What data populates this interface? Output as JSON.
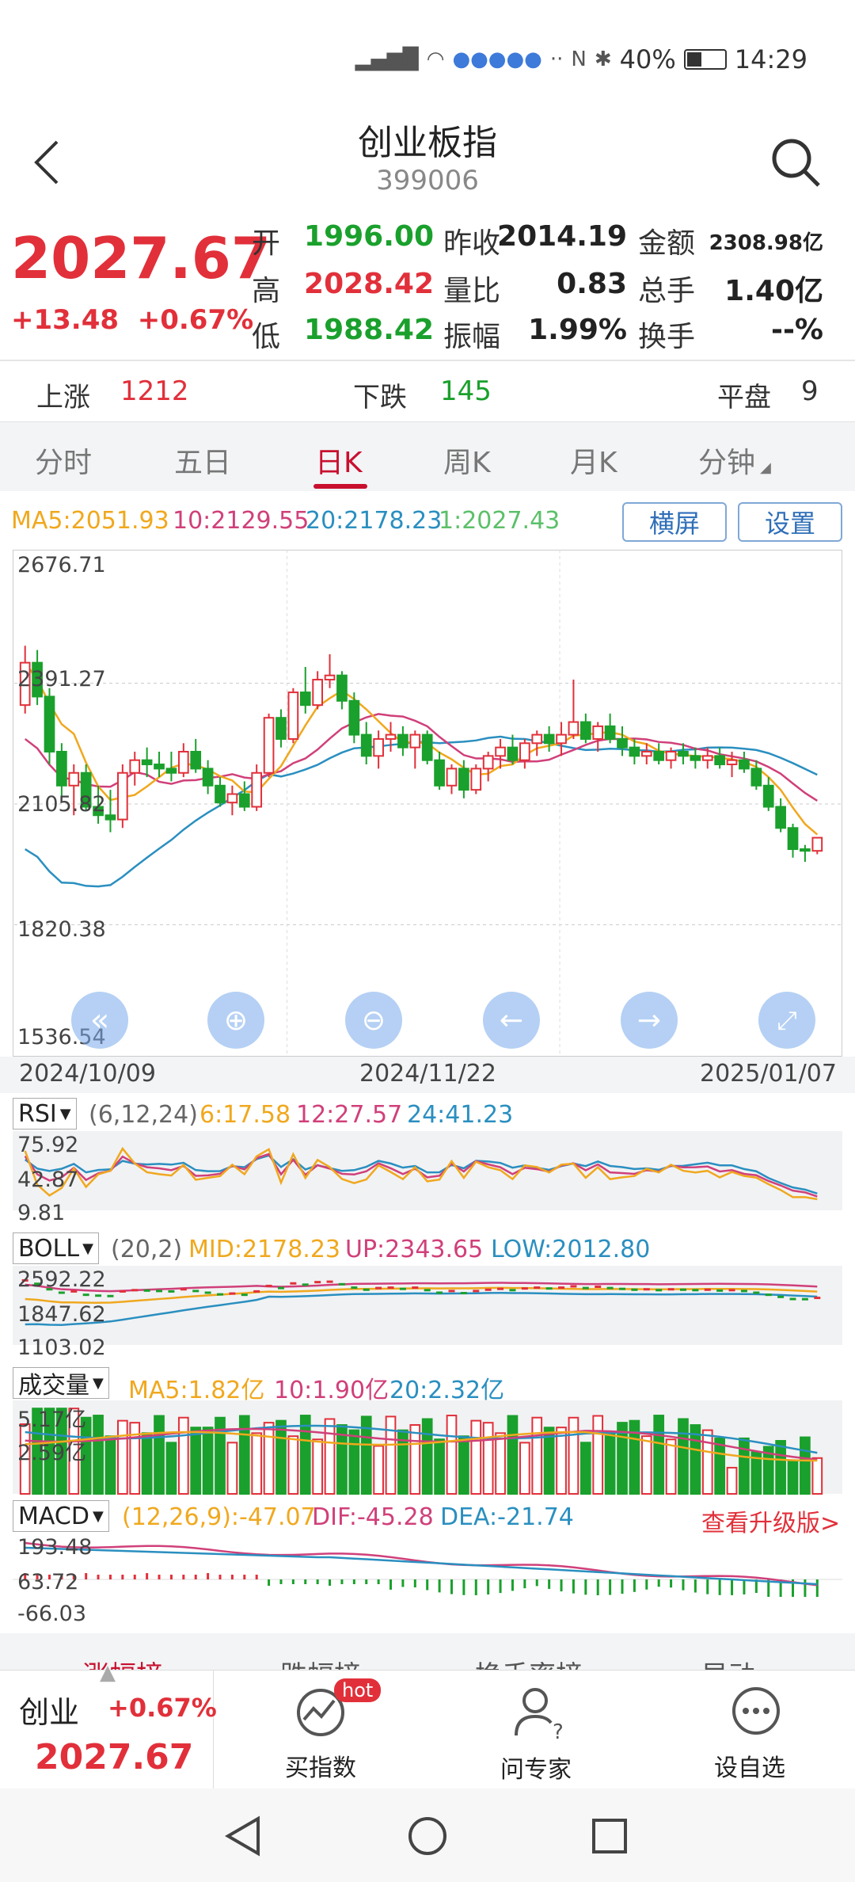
{
  "status_bar": {
    "network": "4G",
    "battery": "40%",
    "time": "14:29"
  },
  "header": {
    "title": "创业板指",
    "code": "399006"
  },
  "quote": {
    "price": "2027.67",
    "change": "+13.48",
    "change_pct": "+0.67%",
    "rows": [
      [
        {
          "label": "开",
          "value": "1996.00",
          "color": "green"
        },
        {
          "label": "昨收",
          "value": "2014.19",
          "color": "black"
        },
        {
          "label": "金额",
          "value": "2308.98亿",
          "color": "black"
        }
      ],
      [
        {
          "label": "高",
          "value": "2028.42",
          "color": "red"
        },
        {
          "label": "量比",
          "value": "0.83",
          "color": "black"
        },
        {
          "label": "总手",
          "value": "1.40亿",
          "color": "black"
        }
      ],
      [
        {
          "label": "低",
          "value": "1988.42",
          "color": "green"
        },
        {
          "label": "振幅",
          "value": "1.99%",
          "color": "black"
        },
        {
          "label": "换手",
          "value": "--%",
          "color": "black"
        }
      ]
    ]
  },
  "breadth": {
    "up_label": "上涨",
    "up": "1212",
    "down_label": "下跌",
    "down": "145",
    "flat_label": "平盘",
    "flat": "9"
  },
  "tabs": [
    "分时",
    "五日",
    "日K",
    "周K",
    "月K",
    "分钟"
  ],
  "active_tab": "日K",
  "ma": {
    "ma5": "MA5:2051.93",
    "ma10": "10:2129.55",
    "ma20": "20:2178.23",
    "ma1": "1:2027.43"
  },
  "buttons": {
    "landscape": "横屏",
    "settings": "设置"
  },
  "main_axis": {
    "y_labels": [
      "2676.71",
      "2391.27",
      "2105.82",
      "1820.38",
      "1536.54"
    ],
    "x_labels": [
      "2024/10/09",
      "2024/11/22",
      "2025/01/07"
    ]
  },
  "rsi": {
    "name": "RSI",
    "params": "(6,12,24)",
    "v6": "6:17.58",
    "v12": "12:27.57",
    "v24": "24:41.23",
    "y_labels": [
      "75.92",
      "42.87",
      "9.81"
    ]
  },
  "boll": {
    "name": "BOLL",
    "params": "(20,2)",
    "mid": "MID:2178.23",
    "up": "UP:2343.65",
    "low": "LOW:2012.80",
    "y_labels": [
      "2592.22",
      "1847.62",
      "1103.02"
    ]
  },
  "volume": {
    "name": "成交量",
    "ma5": "MA5:1.82亿",
    "ma10": "10:1.90亿",
    "ma20": "20:2.32亿",
    "y_labels": [
      "5.17亿",
      "2.59亿"
    ]
  },
  "macd": {
    "name": "MACD",
    "params": "(12,26,9):-47.07",
    "dif": "DIF:-45.28",
    "dea": "DEA:-21.74",
    "upgrade": "查看升级版>",
    "y_labels": [
      "193.48",
      "63.72",
      "-66.03"
    ]
  },
  "peek_tabs": [
    "涨幅榜",
    "跌幅榜",
    "换手率榜",
    "异动"
  ],
  "bottom_bar": {
    "name": "创业",
    "pct": "+0.67%",
    "price": "2027.67",
    "buy": "买指数",
    "hot": "hot",
    "ask": "问专家",
    "fav": "设自选"
  },
  "colors": {
    "up": "#e1303a",
    "down": "#1aa02c",
    "ma5": "#f0a81e",
    "ma10": "#d0407a",
    "ma20": "#2a8fc0",
    "ma1": "#5cc06a"
  },
  "chart_data": {
    "type": "candlestick",
    "title": "创业板指 日K",
    "ohlc_approx": [
      [
        2340,
        2480,
        2320,
        2440
      ],
      [
        2440,
        2470,
        2340,
        2360
      ],
      [
        2360,
        2380,
        2200,
        2230
      ],
      [
        2230,
        2250,
        2120,
        2150
      ],
      [
        2150,
        2200,
        2080,
        2180
      ],
      [
        2180,
        2200,
        2090,
        2100
      ],
      [
        2100,
        2150,
        2060,
        2080
      ],
      [
        2080,
        2140,
        2040,
        2070
      ],
      [
        2070,
        2200,
        2050,
        2180
      ],
      [
        2180,
        2230,
        2150,
        2210
      ],
      [
        2210,
        2240,
        2170,
        2200
      ],
      [
        2200,
        2230,
        2170,
        2190
      ],
      [
        2190,
        2230,
        2160,
        2180
      ],
      [
        2180,
        2250,
        2170,
        2230
      ],
      [
        2230,
        2260,
        2180,
        2190
      ],
      [
        2190,
        2210,
        2130,
        2150
      ],
      [
        2150,
        2170,
        2100,
        2110
      ],
      [
        2110,
        2150,
        2080,
        2130
      ],
      [
        2130,
        2160,
        2090,
        2100
      ],
      [
        2100,
        2200,
        2090,
        2180
      ],
      [
        2180,
        2320,
        2170,
        2310
      ],
      [
        2310,
        2330,
        2240,
        2260
      ],
      [
        2260,
        2380,
        2250,
        2370
      ],
      [
        2370,
        2430,
        2320,
        2340
      ],
      [
        2340,
        2420,
        2330,
        2400
      ],
      [
        2400,
        2460,
        2380,
        2410
      ],
      [
        2410,
        2420,
        2330,
        2350
      ],
      [
        2350,
        2370,
        2250,
        2270
      ],
      [
        2270,
        2300,
        2200,
        2220
      ],
      [
        2220,
        2280,
        2190,
        2260
      ],
      [
        2260,
        2300,
        2230,
        2270
      ],
      [
        2270,
        2290,
        2220,
        2240
      ],
      [
        2240,
        2280,
        2190,
        2270
      ],
      [
        2270,
        2280,
        2200,
        2210
      ],
      [
        2210,
        2230,
        2140,
        2150
      ],
      [
        2150,
        2200,
        2130,
        2190
      ],
      [
        2190,
        2210,
        2120,
        2140
      ],
      [
        2140,
        2200,
        2130,
        2190
      ],
      [
        2190,
        2230,
        2160,
        2220
      ],
      [
        2220,
        2260,
        2190,
        2240
      ],
      [
        2240,
        2270,
        2200,
        2210
      ],
      [
        2210,
        2260,
        2190,
        2250
      ],
      [
        2250,
        2280,
        2220,
        2270
      ],
      [
        2270,
        2290,
        2230,
        2250
      ],
      [
        2250,
        2300,
        2220,
        2270
      ],
      [
        2270,
        2400,
        2260,
        2300
      ],
      [
        2300,
        2320,
        2250,
        2260
      ],
      [
        2260,
        2300,
        2230,
        2290
      ],
      [
        2290,
        2320,
        2250,
        2260
      ],
      [
        2260,
        2290,
        2220,
        2240
      ],
      [
        2240,
        2260,
        2200,
        2220
      ],
      [
        2220,
        2250,
        2200,
        2230
      ],
      [
        2230,
        2250,
        2200,
        2210
      ],
      [
        2210,
        2240,
        2190,
        2230
      ],
      [
        2230,
        2250,
        2200,
        2220
      ],
      [
        2220,
        2240,
        2190,
        2210
      ],
      [
        2210,
        2240,
        2190,
        2220
      ],
      [
        2220,
        2240,
        2190,
        2200
      ],
      [
        2200,
        2230,
        2170,
        2210
      ],
      [
        2210,
        2230,
        2180,
        2190
      ],
      [
        2190,
        2210,
        2140,
        2150
      ],
      [
        2150,
        2170,
        2090,
        2100
      ],
      [
        2100,
        2120,
        2040,
        2050
      ],
      [
        2050,
        2060,
        1980,
        2000
      ],
      [
        2000,
        2010,
        1970,
        1996
      ],
      [
        1996,
        2028,
        1988,
        2027
      ]
    ],
    "y_range": [
      1536.54,
      2676.71
    ],
    "x_labels": [
      "2024/10/09",
      "2024/11/22",
      "2025/01/07"
    ]
  }
}
